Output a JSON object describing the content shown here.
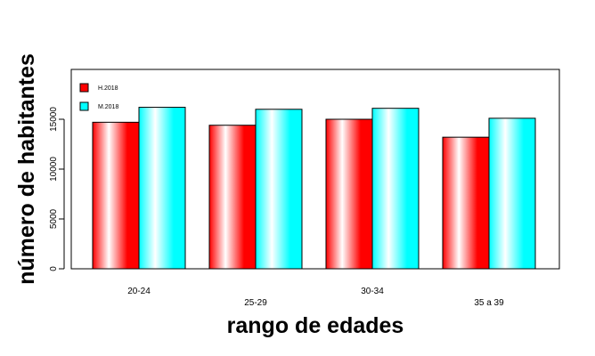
{
  "chart_data": {
    "type": "bar",
    "categories": [
      "20-24",
      "25-29",
      "30-34",
      "35 a 39"
    ],
    "series": [
      {
        "name": "H.2018",
        "values": [
          14700,
          14400,
          15000,
          13200
        ],
        "color": "#ff0000",
        "highlight": "#ffffff"
      },
      {
        "name": "M.2018",
        "values": [
          16200,
          16000,
          16100,
          15100
        ],
        "color": "#00ffff",
        "highlight": "#ffffff"
      }
    ],
    "title": "",
    "xlabel": "rango de edades",
    "ylabel": "número de habitantes",
    "ylim": [
      0,
      20000
    ],
    "yticks": [
      "0",
      "5000",
      "10000",
      "15000"
    ],
    "yticks_values": [
      0,
      5000,
      10000,
      15000
    ],
    "legend_position": "top-left",
    "grid": false
  }
}
